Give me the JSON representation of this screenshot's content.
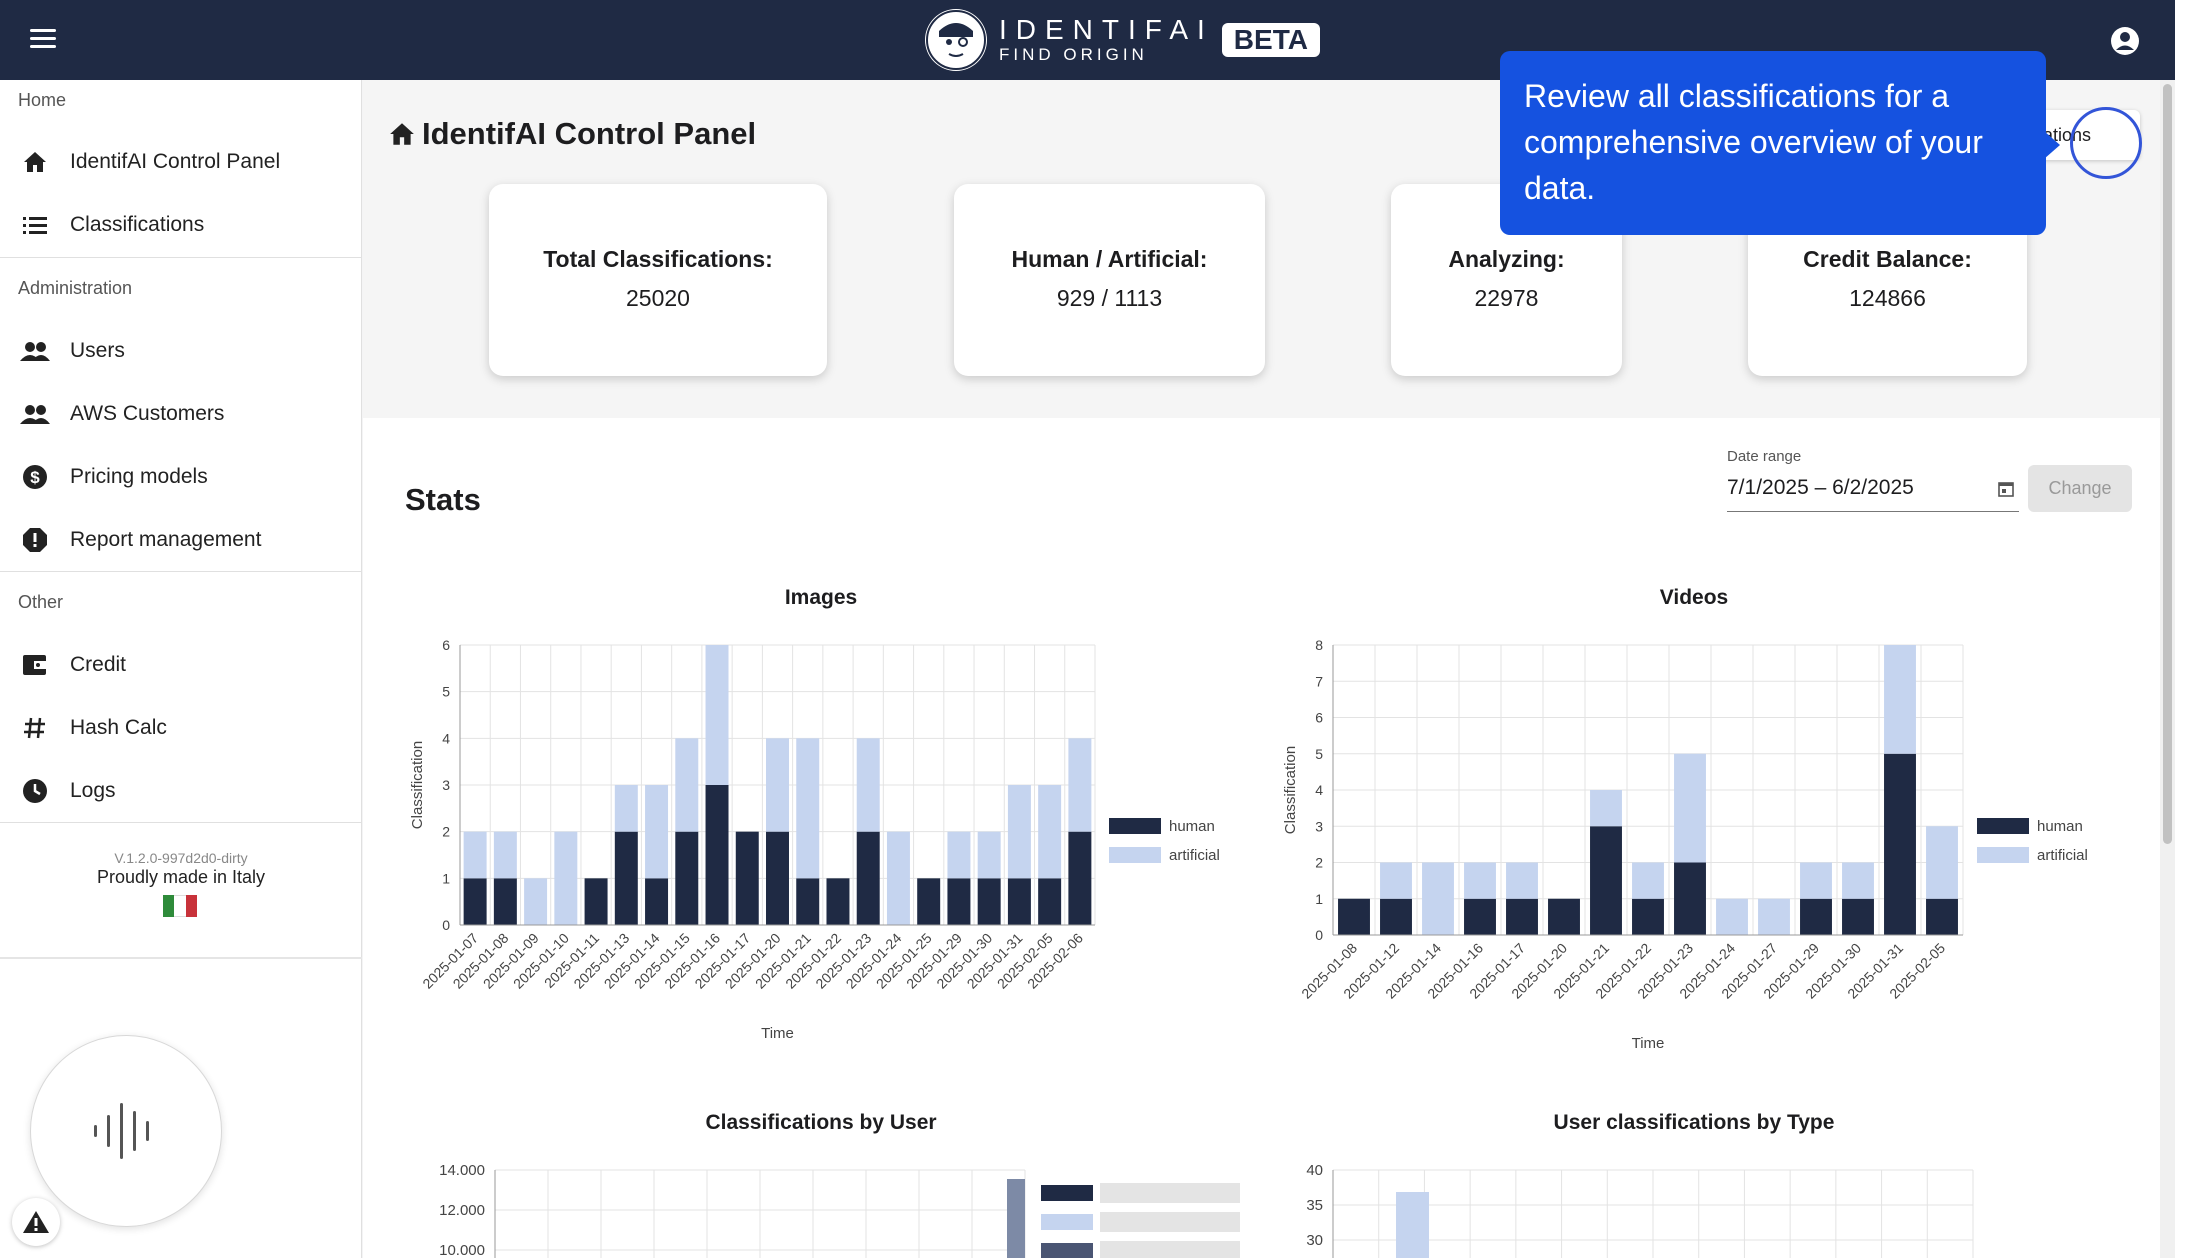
{
  "header": {
    "logo_title": "IDENTIFAI",
    "logo_sub": "FIND ORIGIN",
    "beta": "BETA"
  },
  "sidebar": {
    "sections": [
      {
        "label": "Home",
        "items": [
          {
            "label": "IdentifAI Control Panel",
            "icon": "home-icon"
          },
          {
            "label": "Classifications",
            "icon": "list-icon"
          }
        ]
      },
      {
        "label": "Administration",
        "items": [
          {
            "label": "Users",
            "icon": "people-icon"
          },
          {
            "label": "AWS Customers",
            "icon": "people-icon"
          },
          {
            "label": "Pricing models",
            "icon": "dollar-icon"
          },
          {
            "label": "Report management",
            "icon": "alert-icon"
          }
        ]
      },
      {
        "label": "Other",
        "items": [
          {
            "label": "Credit",
            "icon": "wallet-icon"
          },
          {
            "label": "Hash Calc",
            "icon": "hash-icon"
          },
          {
            "label": "Logs",
            "icon": "clock-icon"
          }
        ]
      }
    ],
    "version": "V.1.2.0-997d2d0-dirty",
    "made_in": "Proudly made in Italy"
  },
  "page": {
    "title": "IdentifAI Control Panel",
    "tour_button": "ications",
    "tooltip": "Review all classifications for a comprehensive overview of your data."
  },
  "cards": [
    {
      "title": "Total Classifications:",
      "value": "25020"
    },
    {
      "title": "Human / Artificial:",
      "value": "929 / 1113"
    },
    {
      "title": "Analyzing:",
      "value": "22978"
    },
    {
      "title": "Credit Balance:",
      "value": "124866"
    }
  ],
  "stats": {
    "title": "Stats",
    "date_label": "Date range",
    "date_value": "7/1/2025 – 6/2/2025",
    "change_button": "Change"
  },
  "colors": {
    "human": "#1f2a44",
    "artificial": "#c5d4ef",
    "primary": "#1552e0"
  },
  "chart_data": [
    {
      "type": "bar",
      "stacked": true,
      "title": "Images",
      "xlabel": "Time",
      "ylabel": "Classification",
      "ylim": [
        0,
        6
      ],
      "yticks": [
        0,
        1,
        2,
        3,
        4,
        5,
        6
      ],
      "categories": [
        "2025-01-07",
        "2025-01-08",
        "2025-01-09",
        "2025-01-10",
        "2025-01-11",
        "2025-01-13",
        "2025-01-14",
        "2025-01-15",
        "2025-01-16",
        "2025-01-17",
        "2025-01-20",
        "2025-01-21",
        "2025-01-22",
        "2025-01-23",
        "2025-01-24",
        "2025-01-25",
        "2025-01-29",
        "2025-01-30",
        "2025-01-31",
        "2025-02-05",
        "2025-02-06"
      ],
      "series": [
        {
          "name": "human",
          "values": [
            1,
            1,
            0,
            0,
            1,
            2,
            1,
            2,
            3,
            2,
            2,
            1,
            1,
            2,
            0,
            1,
            1,
            1,
            1,
            1,
            2
          ]
        },
        {
          "name": "artificial",
          "values": [
            1,
            1,
            1,
            2,
            0,
            1,
            2,
            2,
            3,
            0,
            2,
            3,
            0,
            2,
            2,
            0,
            1,
            1,
            2,
            2,
            2
          ]
        }
      ],
      "legend": "right"
    },
    {
      "type": "bar",
      "stacked": true,
      "title": "Videos",
      "xlabel": "Time",
      "ylabel": "Classification",
      "ylim": [
        0,
        8
      ],
      "yticks": [
        0,
        1,
        2,
        3,
        4,
        5,
        6,
        7,
        8
      ],
      "categories": [
        "2025-01-08",
        "2025-01-12",
        "2025-01-14",
        "2025-01-16",
        "2025-01-17",
        "2025-01-20",
        "2025-01-21",
        "2025-01-22",
        "2025-01-23",
        "2025-01-24",
        "2025-01-27",
        "2025-01-29",
        "2025-01-30",
        "2025-01-31",
        "2025-02-05"
      ],
      "series": [
        {
          "name": "human",
          "values": [
            1,
            1,
            0,
            1,
            1,
            1,
            3,
            1,
            2,
            0,
            0,
            1,
            1,
            5,
            1
          ]
        },
        {
          "name": "artificial",
          "values": [
            0,
            1,
            2,
            1,
            1,
            0,
            1,
            1,
            3,
            1,
            1,
            1,
            1,
            3,
            2
          ]
        }
      ],
      "legend": "right"
    },
    {
      "type": "bar",
      "title": "Classifications by User",
      "yticks": [
        "10.000",
        "12.000",
        "14.000"
      ]
    },
    {
      "type": "bar",
      "title": "User classifications by Type",
      "yticks": [
        30,
        35,
        40
      ]
    }
  ]
}
